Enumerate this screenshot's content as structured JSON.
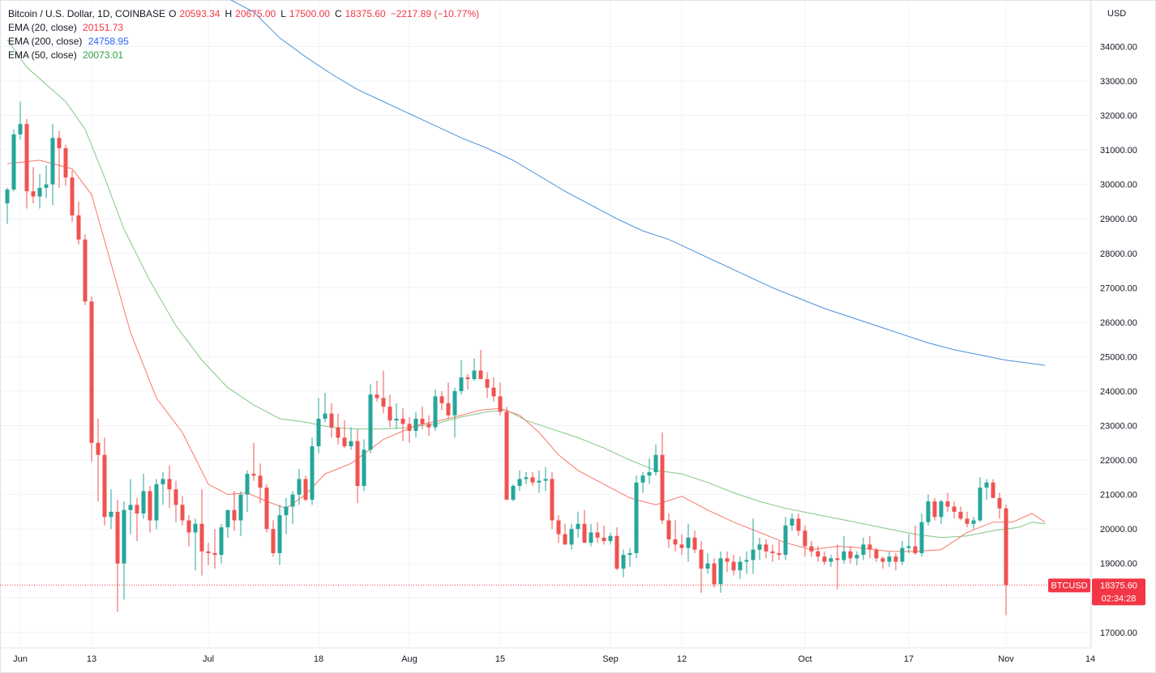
{
  "header": {
    "symbol_title": "Bitcoin / U.S. Dollar, 1D, COINBASE",
    "open_label": "O",
    "open": "20593.34",
    "high_label": "H",
    "high": "20675.00",
    "low_label": "L",
    "low": "17500.00",
    "close_label": "C",
    "close": "18375.60",
    "change": "−2217.89 (−10.77%)",
    "ema20_label": "EMA (20, close)",
    "ema20_value": "20151.73",
    "ema200_label": "EMA (200, close)",
    "ema200_value": "24758.95",
    "ema50_label": "EMA (50, close)",
    "ema50_value": "20073.01"
  },
  "price_badge": {
    "symbol": "BTCUSD",
    "price": "18375.60",
    "countdown": "02:34:28"
  },
  "colors": {
    "up": "#26a69a",
    "down": "#ef5350",
    "ema20": "#f7786b",
    "ema50": "#81c784",
    "ema200": "#4a90d9",
    "badge": "#f23645",
    "grid": "#f0f3fa",
    "text": "#131722"
  },
  "chart_data": {
    "type": "candlestick",
    "currency_label": "USD",
    "y_ticks": [
      17000,
      18000,
      19000,
      20000,
      21000,
      22000,
      23000,
      24000,
      25000,
      26000,
      27000,
      28000,
      29000,
      30000,
      31000,
      32000,
      33000,
      34000
    ],
    "y_tick_labels": [
      "17000.00",
      "18000.00",
      "19000.00",
      "20000.00",
      "21000.00",
      "22000.00",
      "23000.00",
      "24000.00",
      "25000.00",
      "26000.00",
      "27000.00",
      "28000.00",
      "29000.00",
      "30000.00",
      "31000.00",
      "32000.00",
      "33000.00",
      "34000.00"
    ],
    "ylim": [
      16550,
      35350
    ],
    "x_ticks": [
      {
        "label": "Jun",
        "day": 2
      },
      {
        "label": "13",
        "day": 13
      },
      {
        "label": "Jul",
        "day": 31
      },
      {
        "label": "18",
        "day": 48
      },
      {
        "label": "Aug",
        "day": 62
      },
      {
        "label": "15",
        "day": 76
      },
      {
        "label": "Sep",
        "day": 93
      },
      {
        "label": "12",
        "day": 104
      },
      {
        "label": "Oct",
        "day": 123
      },
      {
        "label": "17",
        "day": 139
      },
      {
        "label": "Nov",
        "day": 154
      },
      {
        "label": "14",
        "day": 167
      }
    ],
    "start_date": "2022-05-31",
    "candles": [
      [
        29450,
        29900,
        28850,
        29850
      ],
      [
        29850,
        31600,
        29800,
        31450
      ],
      [
        31450,
        32400,
        31300,
        31750
      ],
      [
        31750,
        31900,
        29300,
        29800
      ],
      [
        29800,
        30500,
        29450,
        29650
      ],
      [
        29650,
        30300,
        29300,
        29900
      ],
      [
        29900,
        30550,
        29600,
        30000
      ],
      [
        30000,
        31750,
        29400,
        31350
      ],
      [
        31350,
        31550,
        29900,
        31050
      ],
      [
        31050,
        31150,
        29950,
        30200
      ],
      [
        30200,
        30400,
        28900,
        29100
      ],
      [
        29100,
        29500,
        28250,
        28400
      ],
      [
        28400,
        28550,
        26500,
        26600
      ],
      [
        26600,
        26750,
        21950,
        22500
      ],
      [
        22500,
        23200,
        20800,
        22150
      ],
      [
        22150,
        22650,
        20100,
        20350
      ],
      [
        20350,
        21150,
        20000,
        20500
      ],
      [
        20500,
        20850,
        17600,
        19000
      ],
      [
        19000,
        20800,
        17950,
        20550
      ],
      [
        20550,
        21450,
        19850,
        20700
      ],
      [
        20700,
        20900,
        19650,
        20450
      ],
      [
        20450,
        21600,
        20300,
        21100
      ],
      [
        21100,
        21250,
        19900,
        20250
      ],
      [
        20250,
        21450,
        20000,
        21300
      ],
      [
        21300,
        21650,
        20700,
        21450
      ],
      [
        21450,
        21850,
        20600,
        21150
      ],
      [
        21150,
        21400,
        20200,
        20700
      ],
      [
        20700,
        20950,
        20100,
        20250
      ],
      [
        20250,
        20400,
        19500,
        19900
      ],
      [
        19900,
        20300,
        18800,
        20150
      ],
      [
        20150,
        21150,
        18650,
        19350
      ],
      [
        19350,
        19600,
        18950,
        19300
      ],
      [
        19300,
        20000,
        18850,
        19250
      ],
      [
        19250,
        20150,
        19000,
        20050
      ],
      [
        20050,
        20400,
        19750,
        20550
      ],
      [
        20550,
        21100,
        19950,
        20250
      ],
      [
        20250,
        21100,
        19800,
        21000
      ],
      [
        21000,
        21700,
        20500,
        21600
      ],
      [
        21600,
        22500,
        21400,
        21550
      ],
      [
        21550,
        21900,
        20750,
        21200
      ],
      [
        21200,
        21300,
        19900,
        20000
      ],
      [
        20000,
        20250,
        19200,
        19300
      ],
      [
        19300,
        20700,
        18950,
        20400
      ],
      [
        20400,
        20900,
        19850,
        20650
      ],
      [
        20650,
        21100,
        20150,
        21000
      ],
      [
        21000,
        21750,
        20700,
        21450
      ],
      [
        21450,
        21550,
        20800,
        20850
      ],
      [
        20850,
        22650,
        20700,
        22400
      ],
      [
        22400,
        23800,
        22200,
        23200
      ],
      [
        23200,
        23950,
        23100,
        23350
      ],
      [
        23350,
        23650,
        22650,
        22950
      ],
      [
        22950,
        23350,
        22450,
        22650
      ],
      [
        22650,
        23150,
        22350,
        22400
      ],
      [
        22400,
        22950,
        22300,
        22550
      ],
      [
        22550,
        22900,
        20750,
        21250
      ],
      [
        21250,
        22600,
        21100,
        22300
      ],
      [
        22300,
        24200,
        22200,
        23900
      ],
      [
        23900,
        24300,
        23700,
        23800
      ],
      [
        23800,
        24600,
        23350,
        23550
      ],
      [
        23550,
        23900,
        22950,
        23150
      ],
      [
        23150,
        23650,
        22900,
        23200
      ],
      [
        23200,
        23500,
        22550,
        23050
      ],
      [
        23050,
        23250,
        22500,
        22850
      ],
      [
        22850,
        23400,
        22650,
        23200
      ],
      [
        23200,
        23550,
        22900,
        23050
      ],
      [
        23050,
        23300,
        22700,
        22950
      ],
      [
        22950,
        24050,
        22850,
        23850
      ],
      [
        23850,
        24000,
        23450,
        23650
      ],
      [
        23650,
        24250,
        23200,
        23300
      ],
      [
        23300,
        24100,
        22650,
        24000
      ],
      [
        24000,
        24900,
        23900,
        24400
      ],
      [
        24400,
        24500,
        24050,
        24350
      ],
      [
        24350,
        24950,
        24300,
        24600
      ],
      [
        24600,
        25200,
        24400,
        24350
      ],
      [
        24350,
        24550,
        23800,
        24100
      ],
      [
        24100,
        24400,
        23700,
        23850
      ],
      [
        23850,
        24250,
        23300,
        23400
      ],
      [
        23400,
        23550,
        20900,
        20850
      ],
      [
        20850,
        21300,
        20800,
        21250
      ],
      [
        21250,
        21700,
        21100,
        21450
      ],
      [
        21450,
        21650,
        21300,
        21500
      ],
      [
        21500,
        21650,
        21250,
        21350
      ],
      [
        21350,
        21700,
        21050,
        21400
      ],
      [
        21400,
        21800,
        21100,
        21450
      ],
      [
        21450,
        21650,
        20000,
        20250
      ],
      [
        20250,
        20400,
        19600,
        19850
      ],
      [
        19850,
        20150,
        19550,
        19550
      ],
      [
        19550,
        20150,
        19400,
        20000
      ],
      [
        20000,
        20500,
        19750,
        20150
      ],
      [
        20150,
        20550,
        19600,
        19600
      ],
      [
        19600,
        20150,
        19500,
        19900
      ],
      [
        19900,
        20200,
        19600,
        19750
      ],
      [
        19750,
        20100,
        19550,
        19650
      ],
      [
        19650,
        19900,
        19550,
        19800
      ],
      [
        19800,
        20050,
        18800,
        18850
      ],
      [
        18850,
        19400,
        18600,
        19250
      ],
      [
        19250,
        19450,
        18900,
        19300
      ],
      [
        19300,
        21550,
        19150,
        21350
      ],
      [
        21350,
        21650,
        21050,
        21550
      ],
      [
        21550,
        22050,
        21300,
        21650
      ],
      [
        21650,
        22450,
        21550,
        22150
      ],
      [
        22150,
        22800,
        20150,
        20250
      ],
      [
        20250,
        20450,
        19450,
        19700
      ],
      [
        19700,
        20250,
        19350,
        19550
      ],
      [
        19550,
        19850,
        19250,
        19450
      ],
      [
        19450,
        20150,
        19050,
        19750
      ],
      [
        19750,
        19950,
        19300,
        19400
      ],
      [
        19400,
        19650,
        18150,
        18850
      ],
      [
        18850,
        19300,
        18700,
        19000
      ],
      [
        19000,
        19150,
        18300,
        18400
      ],
      [
        18400,
        19350,
        18150,
        19150
      ],
      [
        19150,
        19350,
        18750,
        19050
      ],
      [
        19050,
        19250,
        18650,
        18800
      ],
      [
        18800,
        19200,
        18550,
        19050
      ],
      [
        19050,
        19350,
        18700,
        19100
      ],
      [
        19100,
        20300,
        18700,
        19400
      ],
      [
        19400,
        19750,
        19100,
        19550
      ],
      [
        19550,
        19700,
        19150,
        19350
      ],
      [
        19350,
        19550,
        19050,
        19300
      ],
      [
        19300,
        19650,
        19100,
        19250
      ],
      [
        19250,
        20350,
        19100,
        20100
      ],
      [
        20100,
        20450,
        19950,
        20300
      ],
      [
        20300,
        20450,
        19800,
        19950
      ],
      [
        19950,
        20100,
        19200,
        19500
      ],
      [
        19500,
        19650,
        19200,
        19350
      ],
      [
        19350,
        19500,
        19050,
        19200
      ],
      [
        19200,
        19350,
        18950,
        19050
      ],
      [
        19050,
        19250,
        18900,
        19150
      ],
      [
        19150,
        19550,
        18250,
        19100
      ],
      [
        19100,
        19800,
        19000,
        19350
      ],
      [
        19350,
        19500,
        19000,
        19150
      ],
      [
        19150,
        19350,
        18950,
        19250
      ],
      [
        19250,
        19750,
        19100,
        19550
      ],
      [
        19550,
        19800,
        19150,
        19400
      ],
      [
        19400,
        19450,
        19050,
        19150
      ],
      [
        19150,
        19200,
        18850,
        19050
      ],
      [
        19050,
        19350,
        18900,
        19200
      ],
      [
        19200,
        19300,
        18800,
        19050
      ],
      [
        19050,
        19650,
        18950,
        19450
      ],
      [
        19450,
        19850,
        19300,
        19500
      ],
      [
        19500,
        20100,
        19250,
        19300
      ],
      [
        19300,
        20450,
        19200,
        20200
      ],
      [
        20200,
        21000,
        20100,
        20800
      ],
      [
        20800,
        20900,
        20250,
        20350
      ],
      [
        20350,
        20850,
        20150,
        20800
      ],
      [
        20800,
        21050,
        20500,
        20650
      ],
      [
        20650,
        20800,
        20300,
        20500
      ],
      [
        20500,
        20650,
        20250,
        20300
      ],
      [
        20300,
        20500,
        20050,
        20150
      ],
      [
        20150,
        20350,
        20000,
        20250
      ],
      [
        20250,
        21500,
        20200,
        21200
      ],
      [
        21200,
        21450,
        20850,
        21350
      ],
      [
        21350,
        21450,
        20950,
        20900
      ],
      [
        20900,
        21050,
        20300,
        20600
      ],
      [
        20600,
        20700,
        17500,
        18375.6
      ]
    ],
    "ema20": [
      [
        0,
        30600
      ],
      [
        5,
        30700
      ],
      [
        10,
        30450
      ],
      [
        13,
        29700
      ],
      [
        16,
        27700
      ],
      [
        19,
        25700
      ],
      [
        23,
        23800
      ],
      [
        27,
        22800
      ],
      [
        31,
        21300
      ],
      [
        34,
        21000
      ],
      [
        37,
        21050
      ],
      [
        40,
        20800
      ],
      [
        43,
        20600
      ],
      [
        46,
        21000
      ],
      [
        49,
        21600
      ],
      [
        53,
        21900
      ],
      [
        58,
        22600
      ],
      [
        63,
        23000
      ],
      [
        68,
        23200
      ],
      [
        73,
        23450
      ],
      [
        76,
        23500
      ],
      [
        79,
        23300
      ],
      [
        82,
        22800
      ],
      [
        85,
        22150
      ],
      [
        88,
        21700
      ],
      [
        92,
        21300
      ],
      [
        96,
        20900
      ],
      [
        100,
        20700
      ],
      [
        104,
        20950
      ],
      [
        108,
        20550
      ],
      [
        112,
        20200
      ],
      [
        116,
        19900
      ],
      [
        120,
        19600
      ],
      [
        124,
        19400
      ],
      [
        128,
        19500
      ],
      [
        132,
        19450
      ],
      [
        136,
        19350
      ],
      [
        140,
        19350
      ],
      [
        144,
        19400
      ],
      [
        148,
        19900
      ],
      [
        152,
        20200
      ],
      [
        155,
        20200
      ],
      [
        158,
        20450
      ],
      [
        160,
        20200
      ]
    ],
    "ema50": [
      [
        0,
        34200
      ],
      [
        3,
        33400
      ],
      [
        6,
        32900
      ],
      [
        9,
        32400
      ],
      [
        12,
        31600
      ],
      [
        15,
        30200
      ],
      [
        18,
        28700
      ],
      [
        22,
        27200
      ],
      [
        26,
        25900
      ],
      [
        30,
        24900
      ],
      [
        34,
        24100
      ],
      [
        38,
        23600
      ],
      [
        42,
        23200
      ],
      [
        46,
        23100
      ],
      [
        50,
        22950
      ],
      [
        54,
        22900
      ],
      [
        58,
        22900
      ],
      [
        62,
        22950
      ],
      [
        66,
        23050
      ],
      [
        70,
        23250
      ],
      [
        74,
        23400
      ],
      [
        77,
        23450
      ],
      [
        80,
        23150
      ],
      [
        84,
        22900
      ],
      [
        88,
        22650
      ],
      [
        92,
        22350
      ],
      [
        96,
        22000
      ],
      [
        100,
        21700
      ],
      [
        104,
        21600
      ],
      [
        108,
        21350
      ],
      [
        112,
        21050
      ],
      [
        116,
        20800
      ],
      [
        120,
        20600
      ],
      [
        124,
        20450
      ],
      [
        128,
        20300
      ],
      [
        132,
        20150
      ],
      [
        136,
        20000
      ],
      [
        140,
        19850
      ],
      [
        144,
        19750
      ],
      [
        148,
        19800
      ],
      [
        152,
        19950
      ],
      [
        156,
        20050
      ],
      [
        158,
        20200
      ],
      [
        160,
        20150
      ]
    ],
    "ema200": [
      [
        34,
        35400
      ],
      [
        38,
        35000
      ],
      [
        42,
        34250
      ],
      [
        46,
        33700
      ],
      [
        50,
        33200
      ],
      [
        54,
        32750
      ],
      [
        58,
        32400
      ],
      [
        62,
        32050
      ],
      [
        66,
        31700
      ],
      [
        70,
        31350
      ],
      [
        74,
        31050
      ],
      [
        78,
        30700
      ],
      [
        82,
        30250
      ],
      [
        86,
        29800
      ],
      [
        90,
        29400
      ],
      [
        94,
        29000
      ],
      [
        98,
        28650
      ],
      [
        102,
        28400
      ],
      [
        106,
        28050
      ],
      [
        110,
        27700
      ],
      [
        114,
        27350
      ],
      [
        118,
        27000
      ],
      [
        122,
        26700
      ],
      [
        126,
        26400
      ],
      [
        130,
        26150
      ],
      [
        134,
        25900
      ],
      [
        138,
        25650
      ],
      [
        142,
        25400
      ],
      [
        146,
        25200
      ],
      [
        150,
        25050
      ],
      [
        154,
        24900
      ],
      [
        158,
        24800
      ],
      [
        160,
        24750
      ]
    ]
  }
}
